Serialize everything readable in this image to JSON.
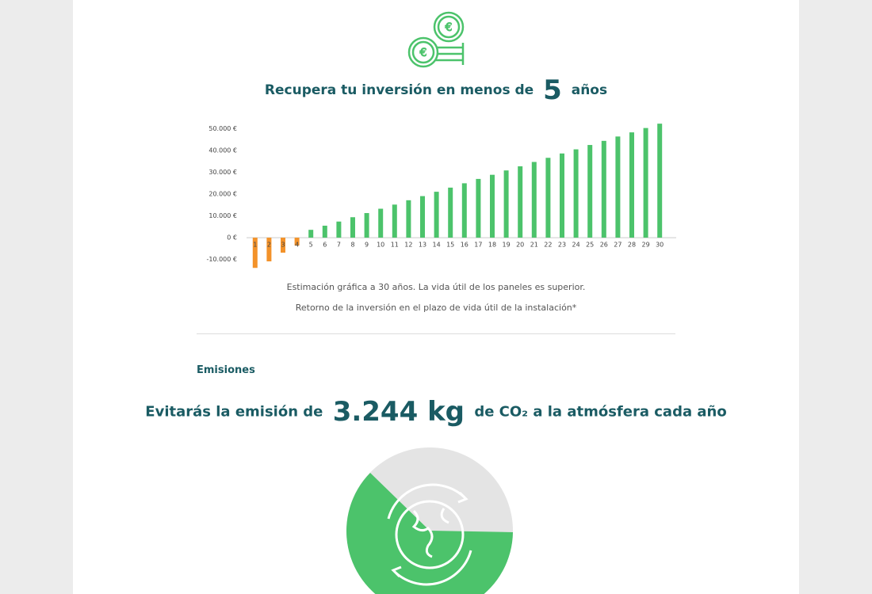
{
  "investment": {
    "title_before": "Recupera tu inversión en menos de",
    "title_highlight": "5",
    "title_after": "años"
  },
  "chart_data": {
    "type": "bar",
    "categories": [
      "1",
      "2",
      "3",
      "4",
      "5",
      "6",
      "7",
      "8",
      "9",
      "10",
      "11",
      "12",
      "13",
      "14",
      "15",
      "16",
      "17",
      "18",
      "19",
      "20",
      "21",
      "22",
      "23",
      "24",
      "25",
      "26",
      "27",
      "28",
      "29",
      "30"
    ],
    "values": [
      -13900,
      -10900,
      -6900,
      -3600,
      3600,
      5500,
      7400,
      9400,
      11300,
      13300,
      15200,
      17200,
      19100,
      21100,
      23000,
      25000,
      27000,
      28900,
      30900,
      32800,
      34800,
      36700,
      38700,
      40600,
      42600,
      44500,
      46500,
      48400,
      50400,
      52400
    ],
    "color": "#4cc36b",
    "negative_color": "#f3922a",
    "ylim": [
      -20000,
      55000
    ],
    "yticks": [
      {
        "value": -10000,
        "label": "-10.000 €"
      },
      {
        "value": 0,
        "label": "0 €"
      },
      {
        "value": 10000,
        "label": "10.000 €"
      },
      {
        "value": 20000,
        "label": "20.000 €"
      },
      {
        "value": 30000,
        "label": "30.000 €"
      },
      {
        "value": 40000,
        "label": "40.000 €"
      },
      {
        "value": 50000,
        "label": "50.000 €"
      }
    ],
    "grid": false
  },
  "notes": [
    "Estimación gráfica a 30 años. La vida útil de los paneles es superior.",
    "Retorno de la inversión en el plazo de vida útil de la instalación*"
  ],
  "emissions": {
    "section": "Emisiones",
    "text_before": "Evitarás la emisión de",
    "highlight": "3.244 kg",
    "text_after": "de CO₂ a la atmósfera cada año"
  }
}
